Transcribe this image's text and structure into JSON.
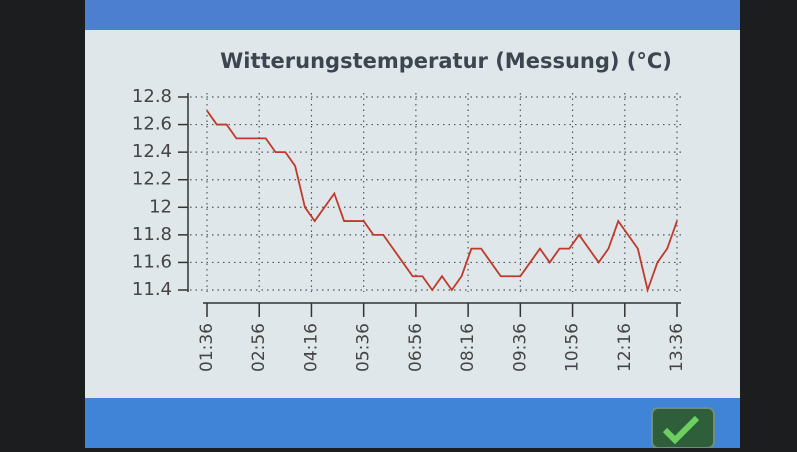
{
  "chart_data": {
    "type": "line",
    "title": "Witterungstemperatur (Messung) (°C)",
    "x": [
      96,
      111,
      126,
      141,
      156,
      171,
      186,
      201,
      216,
      231,
      246,
      261,
      276,
      291,
      306,
      321,
      336,
      351,
      366,
      381,
      396,
      411,
      426,
      441,
      456,
      471,
      486,
      501,
      516,
      531,
      546,
      561,
      576,
      591,
      606,
      621,
      636,
      651,
      666,
      681,
      696,
      711,
      726,
      741,
      756,
      771,
      786,
      801,
      816
    ],
    "series": [
      {
        "name": "Witterungstemperatur",
        "color": "#c0392b",
        "values": [
          12.7,
          12.6,
          12.6,
          12.5,
          12.5,
          12.5,
          12.5,
          12.4,
          12.4,
          12.3,
          12,
          11.9,
          12,
          12.1,
          11.9,
          11.9,
          11.9,
          11.8,
          11.8,
          11.7,
          11.6,
          11.5,
          11.5,
          11.4,
          11.5,
          11.4,
          11.5,
          11.7,
          11.7,
          11.6,
          11.5,
          11.5,
          11.5,
          11.6,
          11.7,
          11.6,
          11.7,
          11.7,
          11.8,
          11.7,
          11.6,
          11.7,
          11.9,
          11.8,
          11.7,
          11.4,
          11.6,
          11.7,
          11.9
        ]
      }
    ],
    "xlim": [
      96,
      816
    ],
    "xticks": [
      {
        "value": 96,
        "label": "01:36"
      },
      {
        "value": 176,
        "label": "02:56"
      },
      {
        "value": 256,
        "label": "04:16"
      },
      {
        "value": 336,
        "label": "05:36"
      },
      {
        "value": 416,
        "label": "06:56"
      },
      {
        "value": 496,
        "label": "08:16"
      },
      {
        "value": 576,
        "label": "09:36"
      },
      {
        "value": 656,
        "label": "10:56"
      },
      {
        "value": 736,
        "label": "12:16"
      },
      {
        "value": 816,
        "label": "13:36"
      }
    ],
    "ylim": [
      11.4,
      12.8
    ],
    "yticks": [
      11.4,
      11.6,
      11.8,
      12,
      12.2,
      12.4,
      12.6,
      12.8
    ],
    "grid": true
  }
}
